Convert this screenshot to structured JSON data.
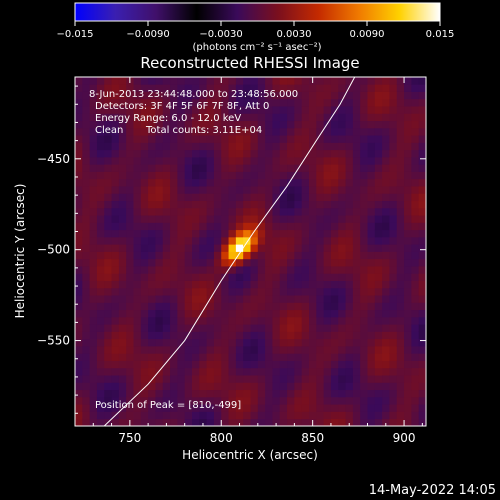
{
  "chart_data": {
    "type": "heatmap",
    "title": "Reconstructed RHESSI Image",
    "xlabel": "Heliocentric X (arcsec)",
    "ylabel": "Heliocentric Y (arcsec)",
    "xlim": [
      720,
      912
    ],
    "ylim": [
      -597,
      -405
    ],
    "xticks": [
      750,
      800,
      850,
      900
    ],
    "yticks": [
      -450,
      -500,
      -550
    ],
    "xticklabels": [
      "750",
      "800",
      "850",
      "900"
    ],
    "yticklabels": [
      "−450",
      "−500",
      "−550"
    ],
    "colorbar": {
      "range": [
        -0.015,
        0.015
      ],
      "ticks": [
        -0.015,
        -0.009,
        -0.003,
        0.003,
        0.009,
        0.015
      ],
      "ticklabels": [
        "−0.015",
        "−0.0090",
        "−0.0030",
        "0.0030",
        "0.0090",
        "0.015"
      ],
      "unit_label": "(photons cm⁻² s⁻¹ asec⁻²)",
      "colors": [
        "#0000ff",
        "#3a1fb0",
        "#40106a",
        "#000000",
        "#3a0a5a",
        "#7a0f1e",
        "#c42a00",
        "#f07a00",
        "#ffd100",
        "#ffffff"
      ]
    },
    "peak": {
      "x": 810,
      "y": -499,
      "value": 0.015,
      "sigma_major": 7.5,
      "sigma_minor": 4.2,
      "angle_deg": 45
    },
    "limb": [
      [
        736,
        -597
      ],
      [
        760,
        -574
      ],
      [
        780,
        -550
      ],
      [
        800,
        -517
      ],
      [
        818,
        -490
      ],
      [
        836,
        -465
      ],
      [
        852,
        -440
      ],
      [
        865,
        -420
      ],
      [
        873,
        -405
      ]
    ],
    "grid": false,
    "legend": "none"
  },
  "annotations": {
    "time_range": "8-Jun-2013 23:44:48.000 to 23:48:56.000",
    "detectors": "Detectors: 3F 4F 5F 6F 7F 8F, Att 0",
    "energy": "Energy Range: 6.0 - 12.0 keV",
    "method": "Clean",
    "counts": "Total counts: 3.11E+04",
    "peak_position": "Position of Peak = [810,-499]"
  },
  "footer": {
    "datetime": "14-May-2022 14:05"
  }
}
